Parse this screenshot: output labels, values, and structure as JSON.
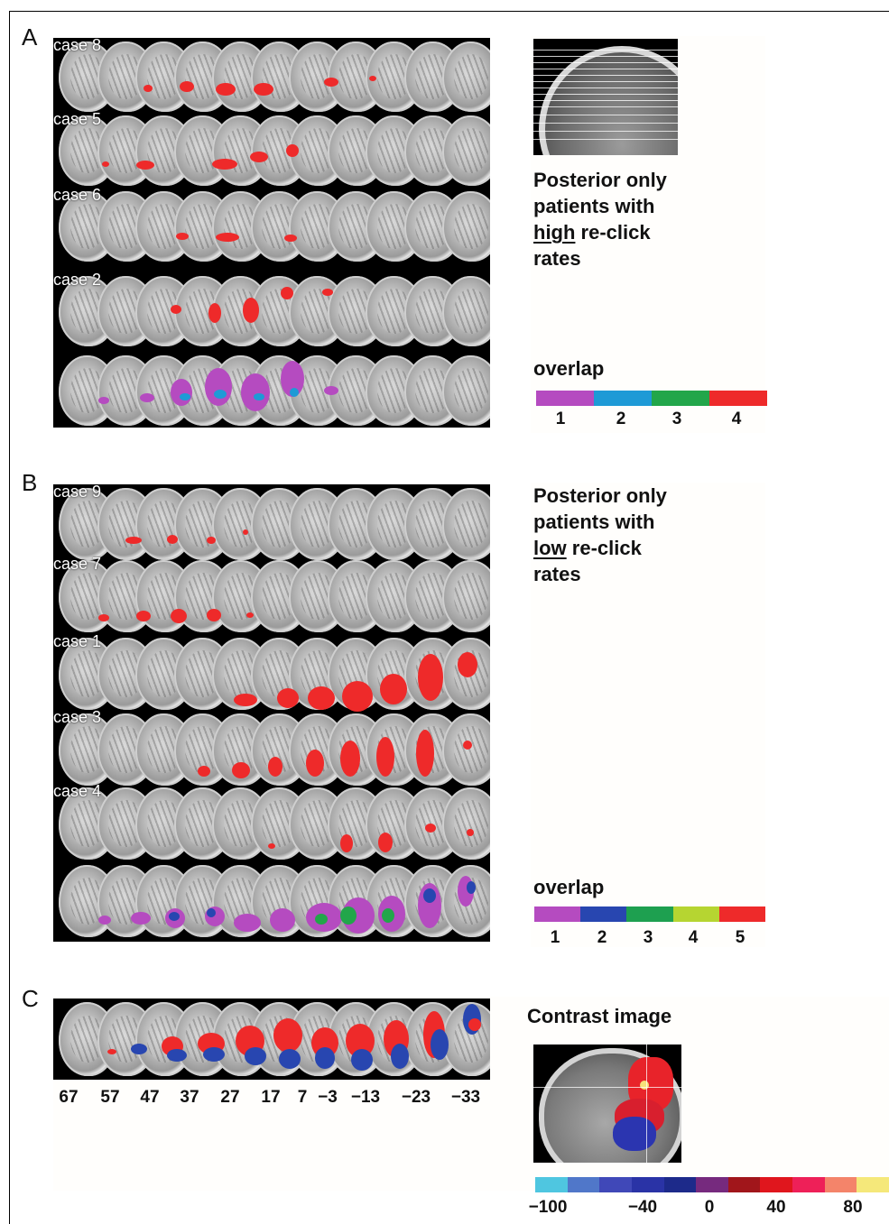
{
  "panels": {
    "A": {
      "label": "A",
      "cases": [
        "case 8",
        "case 5",
        "case 6",
        "case 2"
      ],
      "caption": {
        "line1": "Posterior only",
        "line2": "patients with",
        "line3_u": "high",
        "line3_rest": " re-click",
        "line4": "rates"
      },
      "legend_title": "overlap",
      "legend_ticks": [
        "1",
        "2",
        "3",
        "4"
      ],
      "legend_colors": [
        "#b54bc0",
        "#1e9ad6",
        "#22a64a",
        "#ee2a2a"
      ]
    },
    "B": {
      "label": "B",
      "cases": [
        "case 9",
        "case 7",
        "case 1",
        "case 3",
        "case 4"
      ],
      "caption": {
        "line1": "Posterior only",
        "line2": "patients with",
        "line3_u": "low",
        "line3_rest": " re-click",
        "line4": "rates"
      },
      "legend_title": "overlap",
      "legend_ticks": [
        "1",
        "2",
        "3",
        "4",
        "5"
      ],
      "legend_colors": [
        "#b54bc0",
        "#2846b0",
        "#1ea050",
        "#b6d531",
        "#ee2a2a"
      ]
    },
    "C": {
      "label": "C",
      "slice_positions": [
        "67",
        "57",
        "47",
        "37",
        "27",
        "17",
        "7",
        "−3",
        "−13",
        "−23",
        "−33"
      ],
      "contrast_title": "Contrast image",
      "colorbar_ticks": [
        "−100",
        "−40",
        "0",
        "40",
        "80"
      ],
      "colorbar_colors": [
        "#4fc6e0",
        "#5077c9",
        "#4048b8",
        "#2a33a6",
        "#1d2a8a",
        "#762a7e",
        "#a1161b",
        "#e0161d",
        "#ee2058",
        "#f4846a",
        "#f5e87a"
      ]
    }
  }
}
